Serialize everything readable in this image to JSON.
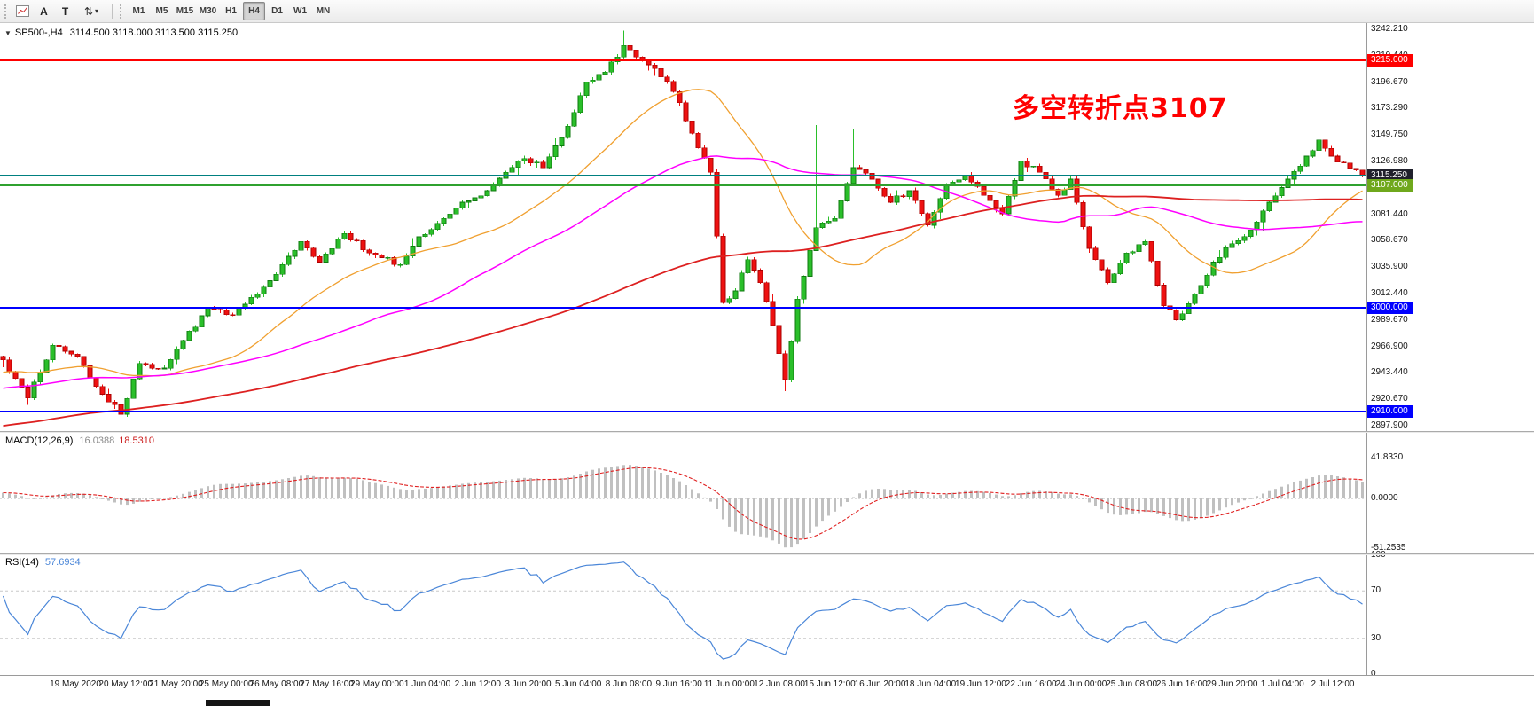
{
  "toolbar": {
    "button_a": "A",
    "button_t": "T",
    "timeframes": [
      "M1",
      "M5",
      "M15",
      "M30",
      "H1",
      "H4",
      "D1",
      "W1",
      "MN"
    ],
    "active_timeframe": "H4"
  },
  "header": {
    "symbol_title": "SP500-,H4",
    "ohlc_text": "3114.500 3118.000 3113.500 3115.250"
  },
  "annotation": {
    "text": "多空转折点3107",
    "color": "#ff0000"
  },
  "macd_display": {
    "label": "MACD(12,26,9)",
    "main_value": "16.0388",
    "signal_value": "18.5310"
  },
  "rsi_display": {
    "label": "RSI(14)",
    "value": "57.6934"
  },
  "chart_data": {
    "type": "candlestick",
    "symbol": "SP500-",
    "timeframe": "H4",
    "bar_count": 220,
    "last_close": 3115.25,
    "colors": {
      "up": "#2abf2a",
      "up_stroke": "#0f7a0f",
      "down": "#ee1111",
      "down_stroke": "#aa0000"
    },
    "price_axis": {
      "max": 3247.5,
      "min": 2892.6,
      "labels": [
        "3242.210",
        "3219.440",
        "3196.670",
        "3173.290",
        "3149.750",
        "3126.980",
        "3104.210",
        "3081.440",
        "3058.670",
        "3035.900",
        "3012.440",
        "2989.670",
        "2966.900",
        "2943.440",
        "2920.670",
        "2897.900"
      ]
    },
    "close_anchors": [
      [
        0,
        2955
      ],
      [
        4,
        2922
      ],
      [
        8,
        2968
      ],
      [
        12,
        2958
      ],
      [
        15,
        2932
      ],
      [
        19,
        2908
      ],
      [
        22,
        2952
      ],
      [
        26,
        2948
      ],
      [
        29,
        2972
      ],
      [
        33,
        3000
      ],
      [
        37,
        2994
      ],
      [
        41,
        3012
      ],
      [
        45,
        3038
      ],
      [
        48,
        3058
      ],
      [
        51,
        3040
      ],
      [
        55,
        3065
      ],
      [
        59,
        3048
      ],
      [
        64,
        3038
      ],
      [
        67,
        3062
      ],
      [
        71,
        3078
      ],
      [
        74,
        3092
      ],
      [
        78,
        3102
      ],
      [
        81,
        3118
      ],
      [
        84,
        3130
      ],
      [
        87,
        3122
      ],
      [
        91,
        3158
      ],
      [
        94,
        3196
      ],
      [
        97,
        3205
      ],
      [
        100,
        3228
      ],
      [
        102,
        3218
      ],
      [
        105,
        3208
      ],
      [
        108,
        3188
      ],
      [
        111,
        3152
      ],
      [
        114,
        3118
      ],
      [
        116,
        3005
      ],
      [
        118,
        3015
      ],
      [
        120,
        3042
      ],
      [
        122,
        3022
      ],
      [
        124,
        2985
      ],
      [
        126,
        2938
      ],
      [
        128,
        3008
      ],
      [
        131,
        3070
      ],
      [
        134,
        3078
      ],
      [
        137,
        3122
      ],
      [
        140,
        3112
      ],
      [
        143,
        3092
      ],
      [
        146,
        3102
      ],
      [
        149,
        3072
      ],
      [
        152,
        3108
      ],
      [
        155,
        3115
      ],
      [
        158,
        3098
      ],
      [
        161,
        3082
      ],
      [
        164,
        3128
      ],
      [
        167,
        3118
      ],
      [
        170,
        3098
      ],
      [
        172,
        3112
      ],
      [
        175,
        3052
      ],
      [
        178,
        3022
      ],
      [
        181,
        3048
      ],
      [
        184,
        3058
      ],
      [
        187,
        3002
      ],
      [
        189,
        2990
      ],
      [
        192,
        3012
      ],
      [
        195,
        3040
      ],
      [
        198,
        3056
      ],
      [
        201,
        3068
      ],
      [
        204,
        3092
      ],
      [
        207,
        3112
      ],
      [
        210,
        3132
      ],
      [
        212,
        3146
      ],
      [
        214,
        3132
      ],
      [
        216,
        3126
      ],
      [
        219,
        3115.25
      ]
    ],
    "wick_overrides": [
      {
        "i": 19,
        "low": 2906
      },
      {
        "i": 100,
        "high": 3241
      },
      {
        "i": 126,
        "low": 2928
      },
      {
        "i": 131,
        "high": 3159
      },
      {
        "i": 137,
        "high": 3156
      },
      {
        "i": 212,
        "high": 3155
      }
    ],
    "ma_preramp": {
      "bars": 130,
      "start": 2840
    },
    "moving_averages": [
      {
        "period": 24,
        "color": "#f0a030",
        "width": 1.3
      },
      {
        "period": 56,
        "color": "#ff00ff",
        "width": 1.5
      },
      {
        "period": 130,
        "color": "#dd2020",
        "width": 1.8
      }
    ],
    "levels": [
      {
        "price": 3215.0,
        "label": "3215.000",
        "color": "#ff0000",
        "label_bg": "#ff0000",
        "thickness": 2
      },
      {
        "price": 3115.25,
        "label": "3115.250",
        "color": "#008080",
        "label_bg": "#20202c",
        "thickness": 1
      },
      {
        "price": 3107.0,
        "label": "3107.000",
        "color": "#2fa12f",
        "label_bg": "#6fa81c",
        "thickness": 2
      },
      {
        "price": 3000.0,
        "label": "3000.000",
        "color": "#0000ff",
        "label_bg": "#0000ff",
        "thickness": 2
      },
      {
        "price": 2910.0,
        "label": "2910.000",
        "color": "#0000ff",
        "label_bg": "#0000ff",
        "thickness": 2
      }
    ],
    "x_labels": [
      "19 May 2020",
      "20 May 12:00",
      "21 May 20:00",
      "25 May 00:00",
      "26 May 08:00",
      "27 May 16:00",
      "29 May 00:00",
      "1 Jun 04:00",
      "2 Jun 12:00",
      "3 Jun 20:00",
      "5 Jun 04:00",
      "8 Jun 08:00",
      "9 Jun 16:00",
      "11 Jun 00:00",
      "12 Jun 08:00",
      "15 Jun 12:00",
      "16 Jun 20:00",
      "18 Jun 04:00",
      "19 Jun 12:00",
      "22 Jun 16:00",
      "24 Jun 00:00",
      "25 Jun 08:00",
      "26 Jun 16:00",
      "29 Jun 20:00",
      "1 Jul 04:00",
      "2 Jul 12:00"
    ],
    "macd": {
      "fast": 12,
      "slow": 26,
      "signal_period": 9,
      "axis_max": 67,
      "axis_min": -57,
      "hist_color": "#c0c0c0",
      "signal_color": "#e02020",
      "axis_labels": [
        {
          "v": 41.833,
          "text": "41.8330"
        },
        {
          "v": 0,
          "text": "0.0000"
        },
        {
          "v": -51.2535,
          "text": "-51.2535"
        }
      ]
    },
    "rsi": {
      "period": 14,
      "color": "#4a86d8",
      "levels": [
        70,
        30
      ],
      "axis_labels": [
        {
          "v": 100,
          "text": "100"
        },
        {
          "v": 70,
          "text": "70"
        },
        {
          "v": 30,
          "text": "30"
        },
        {
          "v": 0,
          "text": "0"
        }
      ]
    }
  }
}
